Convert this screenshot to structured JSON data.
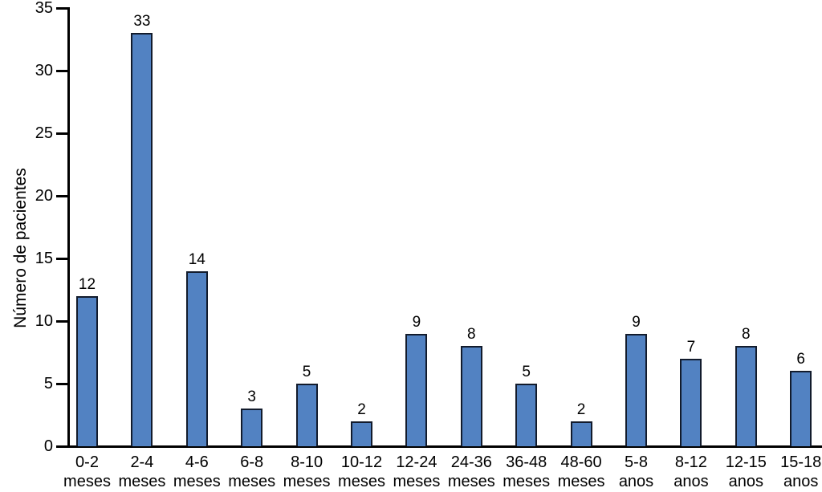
{
  "chart_data": {
    "type": "bar",
    "title": "",
    "ylabel": "Número de pacientes",
    "xlabel": "",
    "ylim": [
      0,
      35
    ],
    "yticks": [
      0,
      5,
      10,
      15,
      20,
      25,
      30,
      35
    ],
    "grid": false,
    "legend": null,
    "categories": [
      "0-2 meses",
      "2-4 meses",
      "4-6 meses",
      "6-8 meses",
      "8-10 meses",
      "10-12 meses",
      "12-24 meses",
      "24-36 meses",
      "36-48 meses",
      "48-60 meses",
      "5-8 anos",
      "8-12 anos",
      "12-15 anos",
      "15-18 anos"
    ],
    "values": [
      12,
      33,
      14,
      3,
      5,
      2,
      9,
      8,
      5,
      2,
      9,
      7,
      8,
      6
    ],
    "colors": {
      "bar_fill": "#5282C2",
      "bar_border": "#121B2C",
      "axis": "#000000",
      "text": "#000000",
      "background": "#FFFFFF"
    }
  }
}
